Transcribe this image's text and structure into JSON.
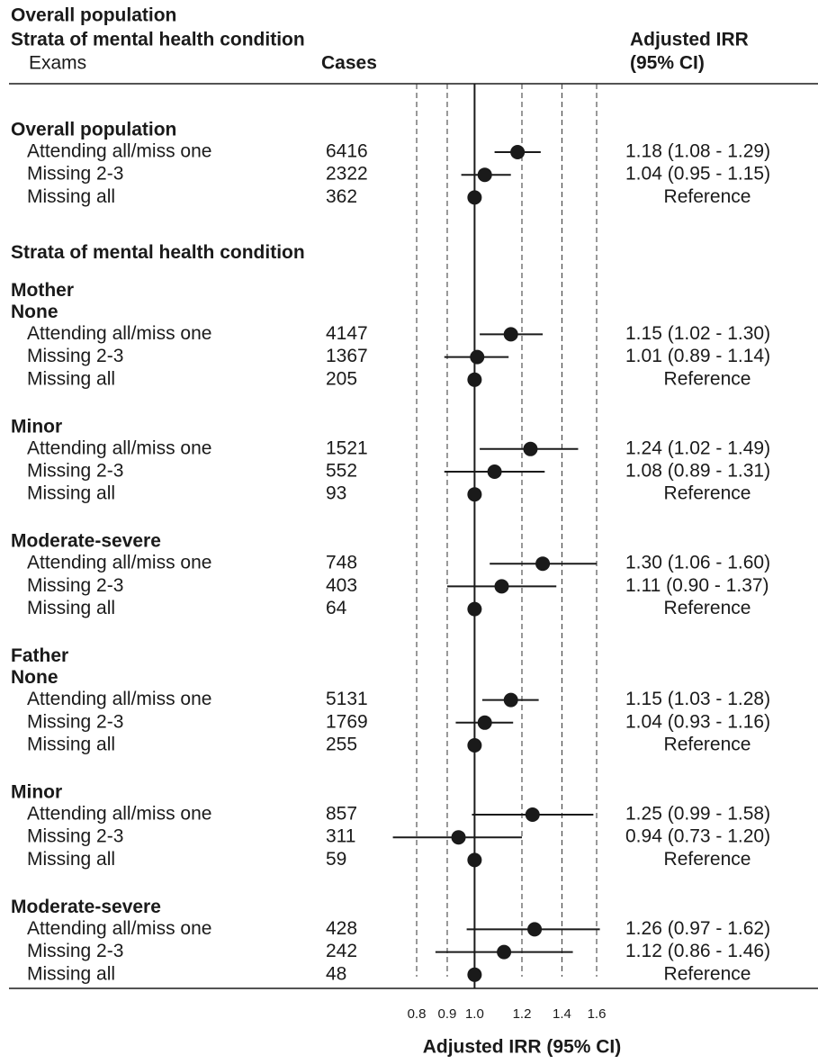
{
  "chart_data": {
    "type": "forest",
    "header": {
      "lines": [
        "Overall population",
        "Strata of mental health condition"
      ],
      "label_column": "Exams",
      "cases_column": "Cases",
      "estimate_column": [
        "Adjusted IRR",
        "(95% CI)"
      ]
    },
    "xlabel": "Adjusted IRR (95% CI)",
    "xscale": "log",
    "xlim": [
      0.8,
      1.6
    ],
    "xticks": [
      0.8,
      0.9,
      {
        "value": 1,
        "label": "1.0"
      },
      1.2,
      1.4,
      1.6
    ],
    "reference_line": 1,
    "color": "#1a1a1a",
    "rows": [
      {
        "section": "Overall population"
      },
      {
        "label": "Attending all/miss one",
        "cases": 6416,
        "irr": 1.18,
        "ci_lower": 1.08,
        "ci_upper": 1.29,
        "irr_label": "1.18 (1.08 - 1.29)"
      },
      {
        "label": "Missing 2-3",
        "cases": 2322,
        "irr": 1.04,
        "ci_lower": 0.95,
        "ci_upper": 1.15,
        "irr_label": "1.04 (0.95 - 1.15)"
      },
      {
        "label": "Missing all",
        "cases": 362,
        "irr": 1,
        "irr_label": "Reference"
      },
      {
        "section": "Strata of mental health condition"
      },
      {
        "heading": "Mother"
      },
      {
        "heading": "None"
      },
      {
        "label": "Attending all/miss one",
        "cases": 4147,
        "irr": 1.15,
        "ci_lower": 1.02,
        "ci_upper": 1.3,
        "irr_label": "1.15 (1.02 - 1.30)"
      },
      {
        "label": "Missing 2-3",
        "cases": 1367,
        "irr": 1.01,
        "ci_lower": 0.89,
        "ci_upper": 1.14,
        "irr_label": "1.01 (0.89 - 1.14)"
      },
      {
        "label": "Missing all",
        "cases": 205,
        "irr": 1,
        "irr_label": "Reference"
      },
      {
        "heading": "Minor"
      },
      {
        "label": "Attending all/miss one",
        "cases": 1521,
        "irr": 1.24,
        "ci_lower": 1.02,
        "ci_upper": 1.49,
        "irr_label": "1.24 (1.02 - 1.49)"
      },
      {
        "label": "Missing 2-3",
        "cases": 552,
        "irr": 1.08,
        "ci_lower": 0.89,
        "ci_upper": 1.31,
        "irr_label": "1.08 (0.89 - 1.31)"
      },
      {
        "label": "Missing all",
        "cases": 93,
        "irr": 1,
        "irr_label": "Reference"
      },
      {
        "heading": "Moderate-severe"
      },
      {
        "label": "Attending all/miss one",
        "cases": 748,
        "irr": 1.3,
        "ci_lower": 1.06,
        "ci_upper": 1.6,
        "irr_label": "1.30 (1.06 - 1.60)"
      },
      {
        "label": "Missing 2-3",
        "cases": 403,
        "irr": 1.11,
        "ci_lower": 0.9,
        "ci_upper": 1.37,
        "irr_label": "1.11 (0.90 - 1.37)"
      },
      {
        "label": "Missing all",
        "cases": 64,
        "irr": 1,
        "irr_label": "Reference"
      },
      {
        "heading": "Father"
      },
      {
        "heading": "None"
      },
      {
        "label": "Attending all/miss one",
        "cases": 5131,
        "irr": 1.15,
        "ci_lower": 1.03,
        "ci_upper": 1.28,
        "irr_label": "1.15 (1.03 - 1.28)"
      },
      {
        "label": "Missing 2-3",
        "cases": 1769,
        "irr": 1.04,
        "ci_lower": 0.93,
        "ci_upper": 1.16,
        "irr_label": "1.04 (0.93 - 1.16)"
      },
      {
        "label": "Missing all",
        "cases": 255,
        "irr": 1,
        "irr_label": "Reference"
      },
      {
        "heading": "Minor"
      },
      {
        "label": "Attending all/miss one",
        "cases": 857,
        "irr": 1.25,
        "ci_lower": 0.99,
        "ci_upper": 1.58,
        "irr_label": "1.25 (0.99 - 1.58)"
      },
      {
        "label": "Missing 2-3",
        "cases": 311,
        "irr": 0.94,
        "ci_lower": 0.73,
        "ci_upper": 1.2,
        "irr_label": "0.94 (0.73 - 1.20)"
      },
      {
        "label": "Missing all",
        "cases": 59,
        "irr": 1,
        "irr_label": "Reference"
      },
      {
        "heading": "Moderate-severe"
      },
      {
        "label": "Attending all/miss one",
        "cases": 428,
        "irr": 1.26,
        "ci_lower": 0.97,
        "ci_upper": 1.62,
        "irr_label": "1.26 (0.97 - 1.62)"
      },
      {
        "label": "Missing 2-3",
        "cases": 242,
        "irr": 1.12,
        "ci_lower": 0.86,
        "ci_upper": 1.46,
        "irr_label": "1.12 (0.86 - 1.46)"
      },
      {
        "label": "Missing all",
        "cases": 48,
        "irr": 1,
        "irr_label": "Reference"
      }
    ]
  }
}
